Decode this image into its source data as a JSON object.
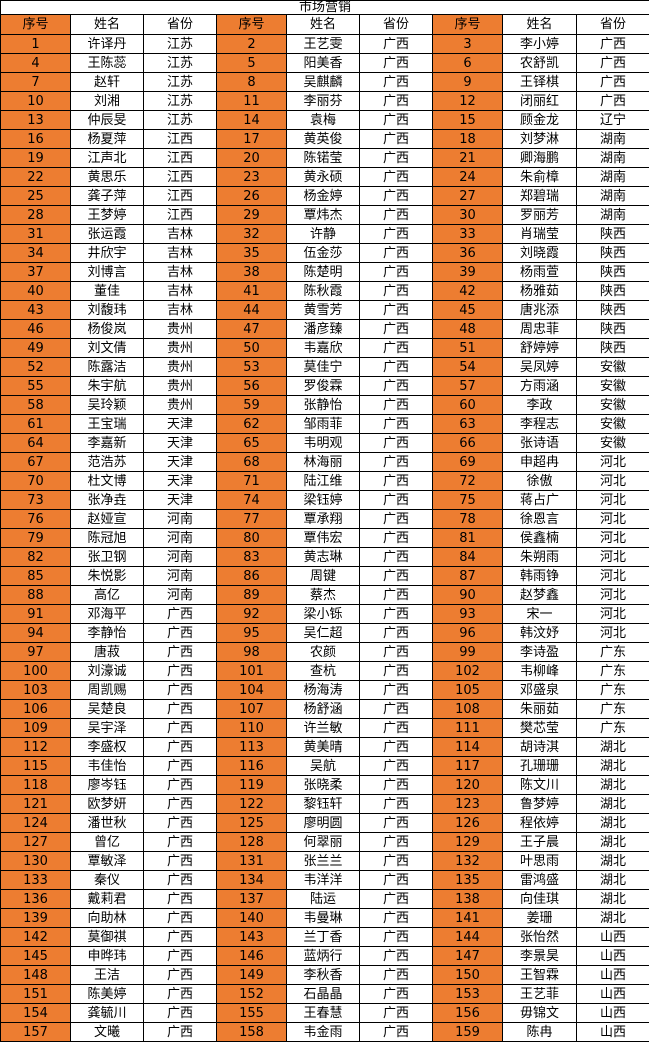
{
  "title": "市场营销",
  "columns": [
    "序号",
    "姓名",
    "省份"
  ],
  "group_count": 3,
  "colors": {
    "serial_bg": "#ED7D31",
    "border": "#000000",
    "background": "#FFFFFF",
    "text": "#000000"
  },
  "rows": [
    [
      1,
      "许译丹",
      "江苏",
      2,
      "王艺雯",
      "广西",
      3,
      "李小婷",
      "广西"
    ],
    [
      4,
      "王陈蕊",
      "江苏",
      5,
      "阳美香",
      "广西",
      6,
      "农舒凯",
      "广西"
    ],
    [
      7,
      "赵轩",
      "江苏",
      8,
      "吴麒麟",
      "广西",
      9,
      "王铎棋",
      "广西"
    ],
    [
      10,
      "刘湘",
      "江苏",
      11,
      "李丽芬",
      "广西",
      12,
      "闭丽红",
      "广西"
    ],
    [
      13,
      "仲辰旻",
      "江苏",
      14,
      "袁梅",
      "广西",
      15,
      "顾金龙",
      "辽宁"
    ],
    [
      16,
      "杨夏萍",
      "江西",
      17,
      "黄英俊",
      "广西",
      18,
      "刘梦淋",
      "湖南"
    ],
    [
      19,
      "江声北",
      "江西",
      20,
      "陈锘莹",
      "广西",
      21,
      "卿海鹏",
      "湖南"
    ],
    [
      22,
      "黄思乐",
      "江西",
      23,
      "黄永硕",
      "广西",
      24,
      "朱俞樟",
      "湖南"
    ],
    [
      25,
      "龚子萍",
      "江西",
      26,
      "杨金婷",
      "广西",
      27,
      "郑碧瑞",
      "湖南"
    ],
    [
      28,
      "王梦婷",
      "江西",
      29,
      "覃炜杰",
      "广西",
      30,
      "罗丽芳",
      "湖南"
    ],
    [
      31,
      "张运霞",
      "吉林",
      32,
      "许静",
      "广西",
      33,
      "肖瑞莹",
      "陕西"
    ],
    [
      34,
      "井欣宇",
      "吉林",
      35,
      "伍金莎",
      "广西",
      36,
      "刘晓霞",
      "陕西"
    ],
    [
      37,
      "刘博言",
      "吉林",
      38,
      "陈楚明",
      "广西",
      39,
      "杨雨萱",
      "陕西"
    ],
    [
      40,
      "董佳",
      "吉林",
      41,
      "陈秋霞",
      "广西",
      42,
      "杨雅茹",
      "陕西"
    ],
    [
      43,
      "刘馥玮",
      "吉林",
      44,
      "黄雪芳",
      "广西",
      45,
      "唐兆添",
      "陕西"
    ],
    [
      46,
      "杨俊岚",
      "贵州",
      47,
      "潘彦臻",
      "广西",
      48,
      "周忠菲",
      "陕西"
    ],
    [
      49,
      "刘文倩",
      "贵州",
      50,
      "韦嘉欣",
      "广西",
      51,
      "舒婷婷",
      "陕西"
    ],
    [
      52,
      "陈露洁",
      "贵州",
      53,
      "莫佳宁",
      "广西",
      54,
      "吴凤婷",
      "安徽"
    ],
    [
      55,
      "朱宇航",
      "贵州",
      56,
      "罗俊霖",
      "广西",
      57,
      "方雨涵",
      "安徽"
    ],
    [
      58,
      "吴玲颖",
      "贵州",
      59,
      "张静怡",
      "广西",
      60,
      "李政",
      "安徽"
    ],
    [
      61,
      "王宝瑞",
      "天津",
      62,
      "邹雨菲",
      "广西",
      63,
      "李程志",
      "安徽"
    ],
    [
      64,
      "李嘉新",
      "天津",
      65,
      "韦明观",
      "广西",
      66,
      "张诗语",
      "安徽"
    ],
    [
      67,
      "范浩苏",
      "天津",
      68,
      "林海丽",
      "广西",
      69,
      "申超冉",
      "河北"
    ],
    [
      70,
      "杜文博",
      "天津",
      71,
      "陆江维",
      "广西",
      72,
      "徐傲",
      "河北"
    ],
    [
      73,
      "张净垚",
      "天津",
      74,
      "梁钰婷",
      "广西",
      75,
      "蒋占广",
      "河北"
    ],
    [
      76,
      "赵娅宣",
      "河南",
      77,
      "覃承翔",
      "广西",
      78,
      "徐恩言",
      "河北"
    ],
    [
      79,
      "陈冠旭",
      "河南",
      80,
      "覃伟宏",
      "广西",
      81,
      "侯鑫楠",
      "河北"
    ],
    [
      82,
      "张卫钢",
      "河南",
      83,
      "黄志琳",
      "广西",
      84,
      "朱朔雨",
      "河北"
    ],
    [
      85,
      "朱悦影",
      "河南",
      86,
      "周键",
      "广西",
      87,
      "韩雨铮",
      "河北"
    ],
    [
      88,
      "高亿",
      "河南",
      89,
      "蔡杰",
      "广西",
      90,
      "赵梦鑫",
      "河北"
    ],
    [
      91,
      "邓海平",
      "广西",
      92,
      "梁小铄",
      "广西",
      93,
      "宋一",
      "河北"
    ],
    [
      94,
      "李静怡",
      "广西",
      95,
      "吴仁超",
      "广西",
      96,
      "韩汶妤",
      "河北"
    ],
    [
      97,
      "唐菽",
      "广西",
      98,
      "农颜",
      "广西",
      99,
      "李诗盈",
      "广东"
    ],
    [
      100,
      "刘濠诚",
      "广西",
      101,
      "查杭",
      "广西",
      102,
      "韦柳峰",
      "广东"
    ],
    [
      103,
      "周凯赐",
      "广西",
      104,
      "杨海涛",
      "广西",
      105,
      "邓盛泉",
      "广东"
    ],
    [
      106,
      "吴楚良",
      "广西",
      107,
      "杨舒涵",
      "广西",
      108,
      "朱丽茹",
      "广东"
    ],
    [
      109,
      "吴宇泽",
      "广西",
      110,
      "许兰敏",
      "广西",
      111,
      "樊芯莹",
      "广东"
    ],
    [
      112,
      "李盛权",
      "广西",
      113,
      "黄美晴",
      "广西",
      114,
      "胡诗淇",
      "湖北"
    ],
    [
      115,
      "韦佳怡",
      "广西",
      116,
      "吴航",
      "广西",
      117,
      "孔珊珊",
      "湖北"
    ],
    [
      118,
      "廖岑钰",
      "广西",
      119,
      "张晓柔",
      "广西",
      120,
      "陈文川",
      "湖北"
    ],
    [
      121,
      "欧梦妍",
      "广西",
      122,
      "黎钰轩",
      "广西",
      123,
      "鲁梦婷",
      "湖北"
    ],
    [
      124,
      "潘世秋",
      "广西",
      125,
      "廖明圆",
      "广西",
      126,
      "程依婷",
      "湖北"
    ],
    [
      127,
      "曾亿",
      "广西",
      128,
      "何翠丽",
      "广西",
      129,
      "王子晨",
      "湖北"
    ],
    [
      130,
      "覃敏泽",
      "广西",
      131,
      "张兰兰",
      "广西",
      132,
      "叶思雨",
      "湖北"
    ],
    [
      133,
      "秦仪",
      "广西",
      134,
      "韦洋洋",
      "广西",
      135,
      "雷鸿盛",
      "湖北"
    ],
    [
      136,
      "戴莉君",
      "广西",
      137,
      "陆运",
      "广西",
      138,
      "向佳琪",
      "湖北"
    ],
    [
      139,
      "向助林",
      "广西",
      140,
      "韦曼琳",
      "广西",
      141,
      "姜珊",
      "湖北"
    ],
    [
      142,
      "莫御祺",
      "广西",
      143,
      "兰丁香",
      "广西",
      144,
      "张怡然",
      "山西"
    ],
    [
      145,
      "申晔玮",
      "广西",
      146,
      "蓝炳行",
      "广西",
      147,
      "李景昊",
      "山西"
    ],
    [
      148,
      "王洁",
      "广西",
      149,
      "李秋香",
      "广西",
      150,
      "王智霖",
      "山西"
    ],
    [
      151,
      "陈美婷",
      "广西",
      152,
      "石晶晶",
      "广西",
      153,
      "王艺菲",
      "山西"
    ],
    [
      154,
      "龚毓川",
      "广西",
      155,
      "王春慧",
      "广西",
      156,
      "毋锦文",
      "山西"
    ],
    [
      157,
      "文曦",
      "广西",
      158,
      "韦金雨",
      "广西",
      159,
      "陈冉",
      "山西"
    ]
  ]
}
